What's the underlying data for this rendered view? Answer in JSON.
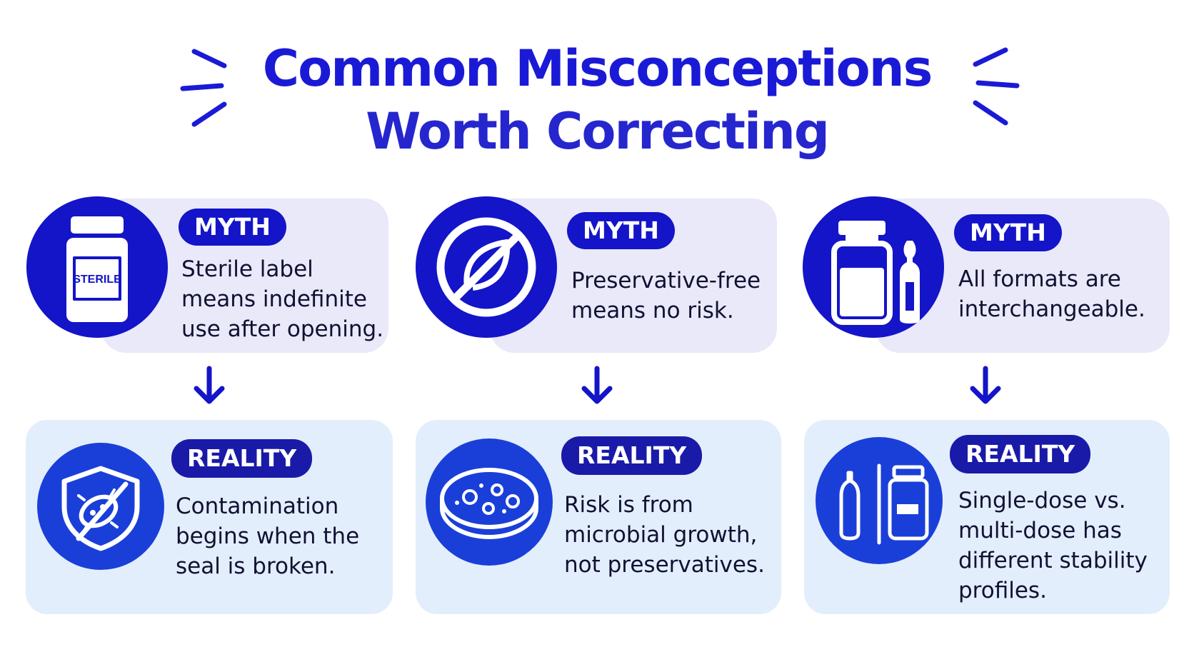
{
  "title": {
    "line1": "Common Misconceptions",
    "line2": "Worth Correcting"
  },
  "columns": [
    {
      "myth_label": "MYTH",
      "myth_text": "Sterile label means indefinite use after opening.",
      "myth_icon": "sterile-vial-icon",
      "vial_label": "STERILE",
      "reality_label": "REALITY",
      "reality_text": "Contamination begins when the seal is broken.",
      "reality_icon": "shield-microbe-crossed-icon"
    },
    {
      "myth_label": "MYTH",
      "myth_text": "Preservative-free means no risk.",
      "myth_icon": "leaf-crossed-icon",
      "reality_label": "REALITY",
      "reality_text": "Risk is from microbial growth, not preservatives.",
      "reality_icon": "petri-dish-icon"
    },
    {
      "myth_label": "MYTH",
      "myth_text": "All formats are interchangeable.",
      "myth_icon": "vial-and-ampoule-icon",
      "reality_label": "REALITY",
      "reality_text": "Single-dose vs. multi-dose has different stability profiles.",
      "reality_icon": "ampoule-vs-vial-icon"
    }
  ],
  "colors": {
    "primary": "#1414c8",
    "title": "#1a1ad6",
    "myth_card": "#e9e9fa",
    "reality_card": "#e3eefc"
  }
}
